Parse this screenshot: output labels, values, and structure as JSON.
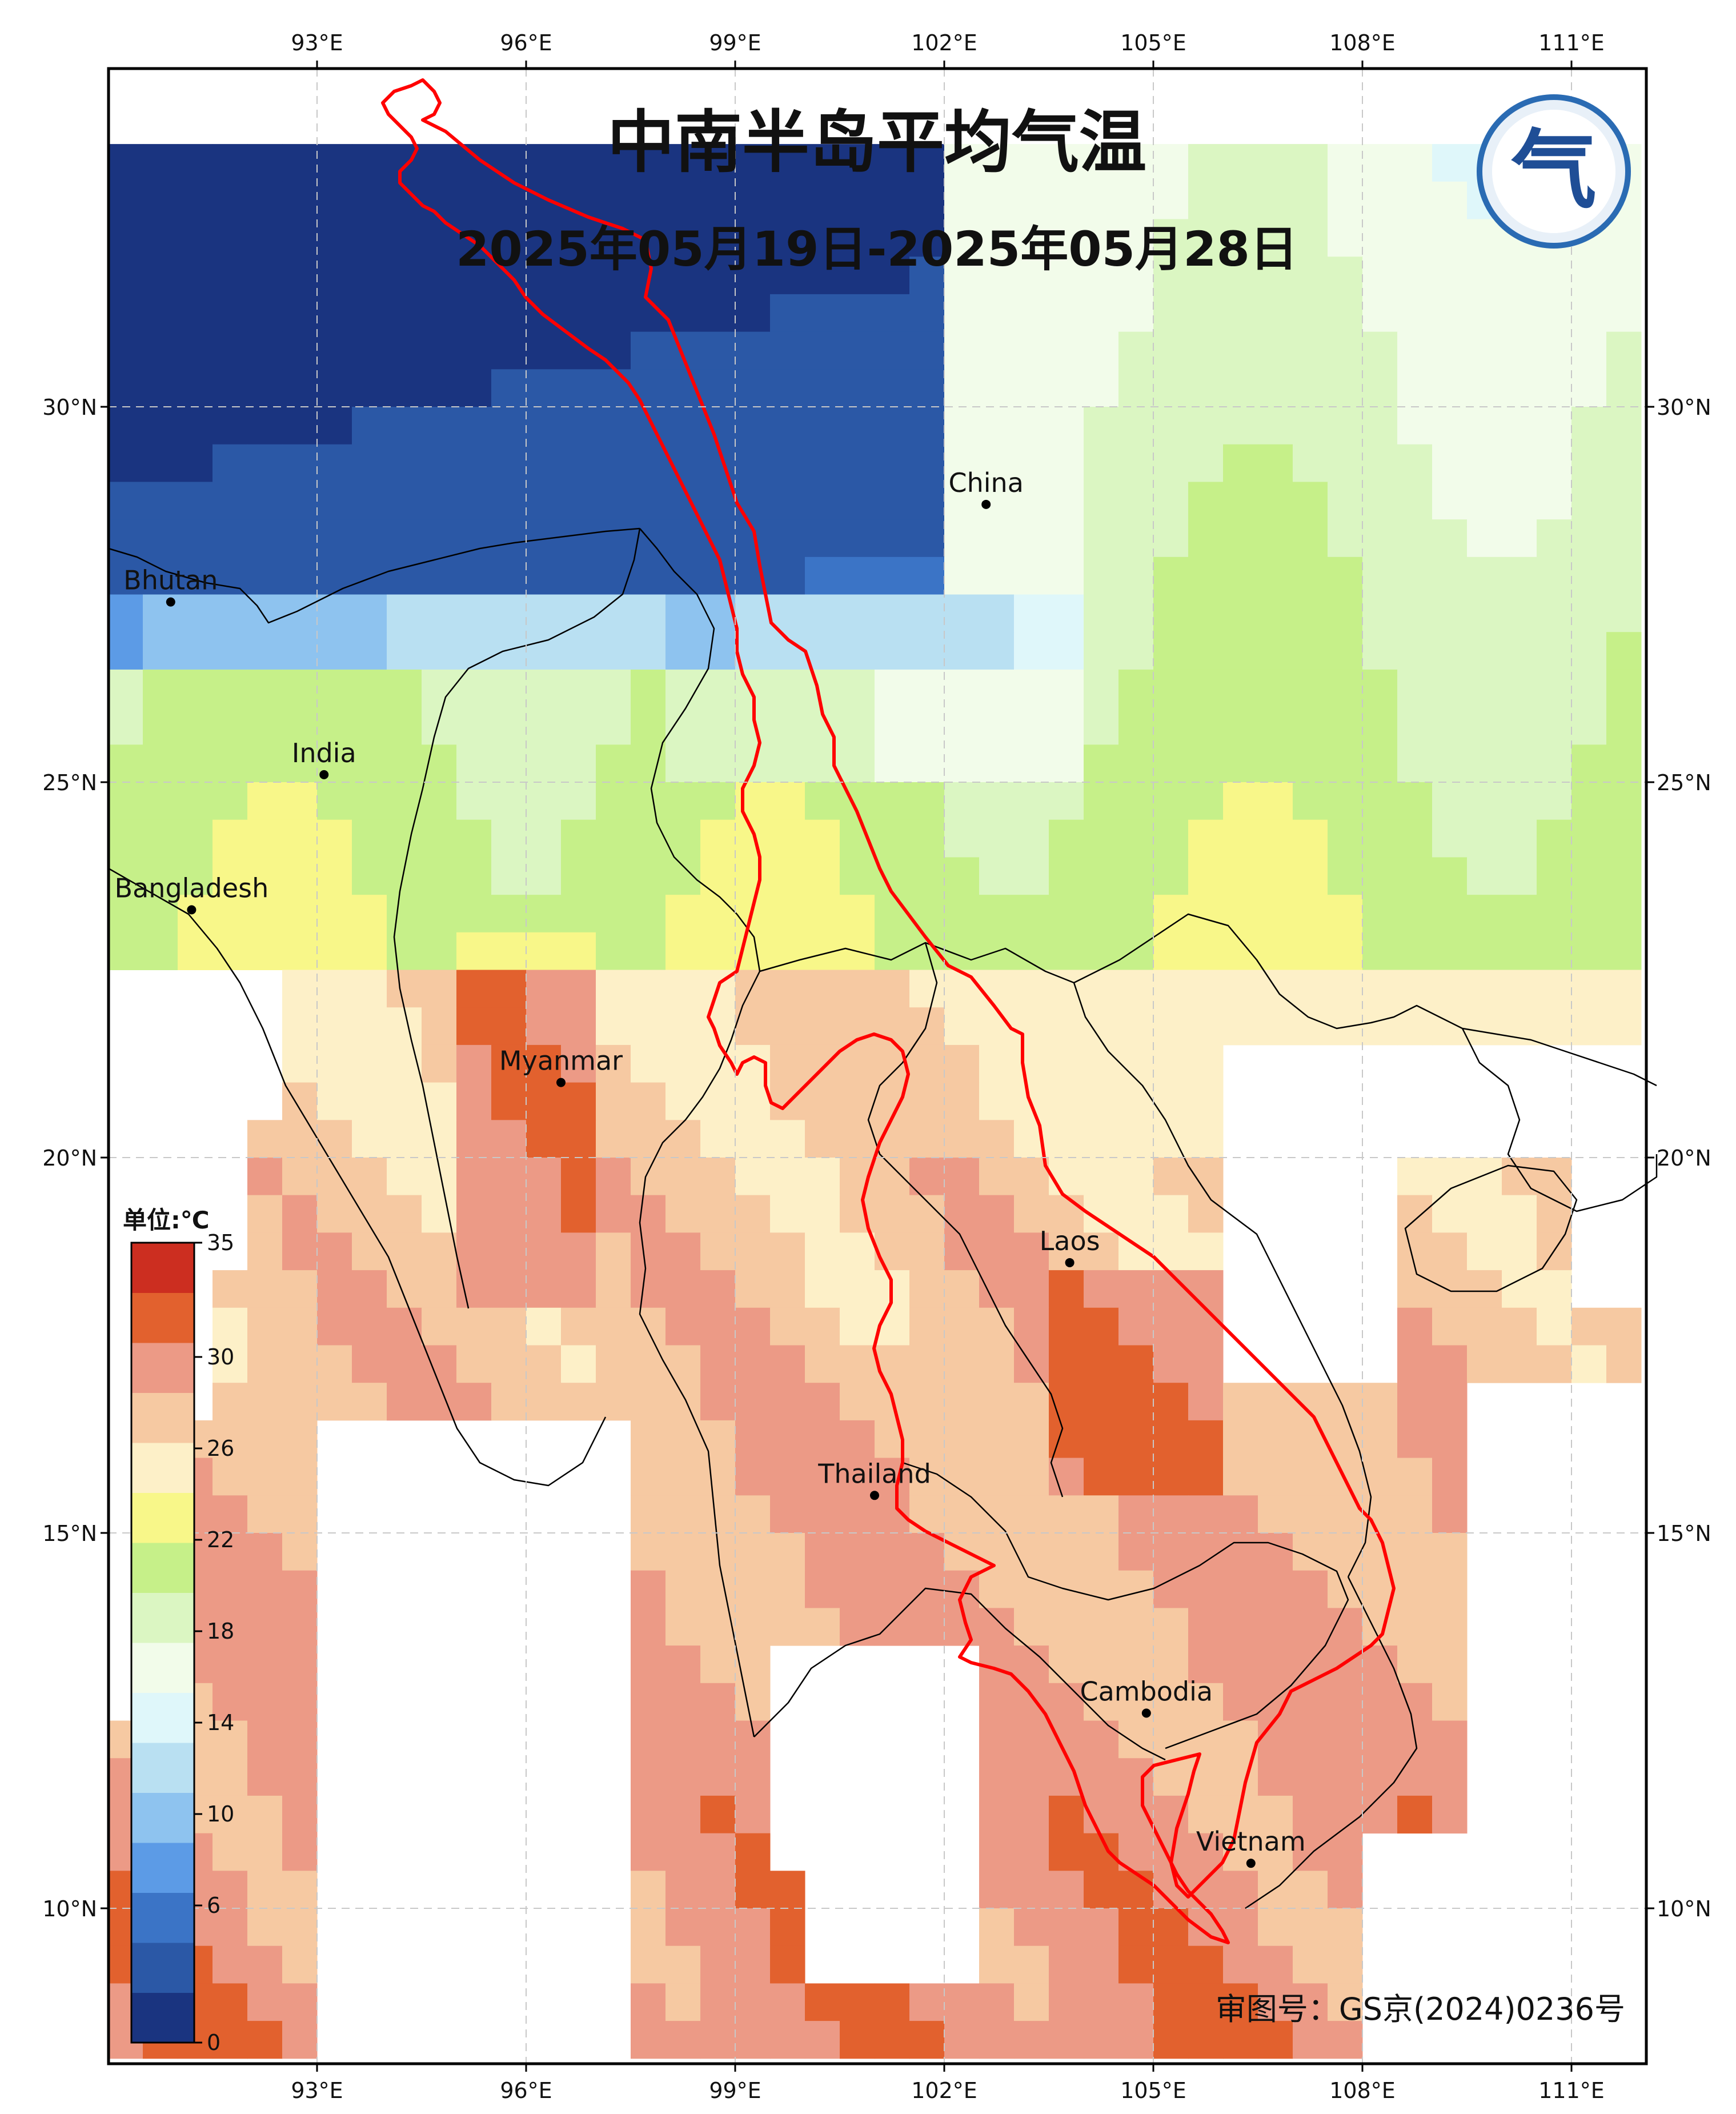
{
  "title": "中南半岛平均气温",
  "subtitle": "2025年05月19日-2025年05月28日",
  "approval_number": "审图号：GS京(2024)0236号",
  "logo_glyph": "气",
  "colorbar": {
    "unit_label": "单位:℃",
    "tick_labels": [
      "35",
      "30",
      "26",
      "22",
      "18",
      "14",
      "10",
      "6",
      "0"
    ],
    "colors": [
      "#1a3480",
      "#2b58a6",
      "#3b74c6",
      "#5c9be6",
      "#8ec3ef",
      "#b9e0f2",
      "#dff7fa",
      "#f2fcea",
      "#dbf6c2",
      "#c6f089",
      "#f8f789",
      "#fdf0c8",
      "#f6c9a2",
      "#ec9a86",
      "#e2612e",
      "#cc2e20"
    ]
  },
  "axes": {
    "lon_ticks": [
      "93°E",
      "96°E",
      "99°E",
      "102°E",
      "105°E",
      "108°E",
      "111°E"
    ],
    "lat_ticks": [
      "30°N",
      "25°N",
      "20°N",
      "15°N",
      "10°N"
    ]
  },
  "places": [
    {
      "name": "China",
      "lon": 102.6,
      "lat": 28.7
    },
    {
      "name": "Bhutan",
      "lon": 90.9,
      "lat": 27.4
    },
    {
      "name": "India",
      "lon": 93.1,
      "lat": 25.1
    },
    {
      "name": "Bangladesh",
      "lon": 91.2,
      "lat": 23.3
    },
    {
      "name": "Myanmar",
      "lon": 96.5,
      "lat": 21.0
    },
    {
      "name": "Laos",
      "lon": 103.8,
      "lat": 18.6
    },
    {
      "name": "Thailand",
      "lon": 101.0,
      "lat": 15.5
    },
    {
      "name": "Cambodia",
      "lon": 104.9,
      "lat": 12.6
    },
    {
      "name": "Vietnam",
      "lon": 106.4,
      "lat": 10.6
    }
  ],
  "colors": {
    "basin_boundary": "#ff0000",
    "grid": "#c8c8c8",
    "frame": "#000000"
  }
}
